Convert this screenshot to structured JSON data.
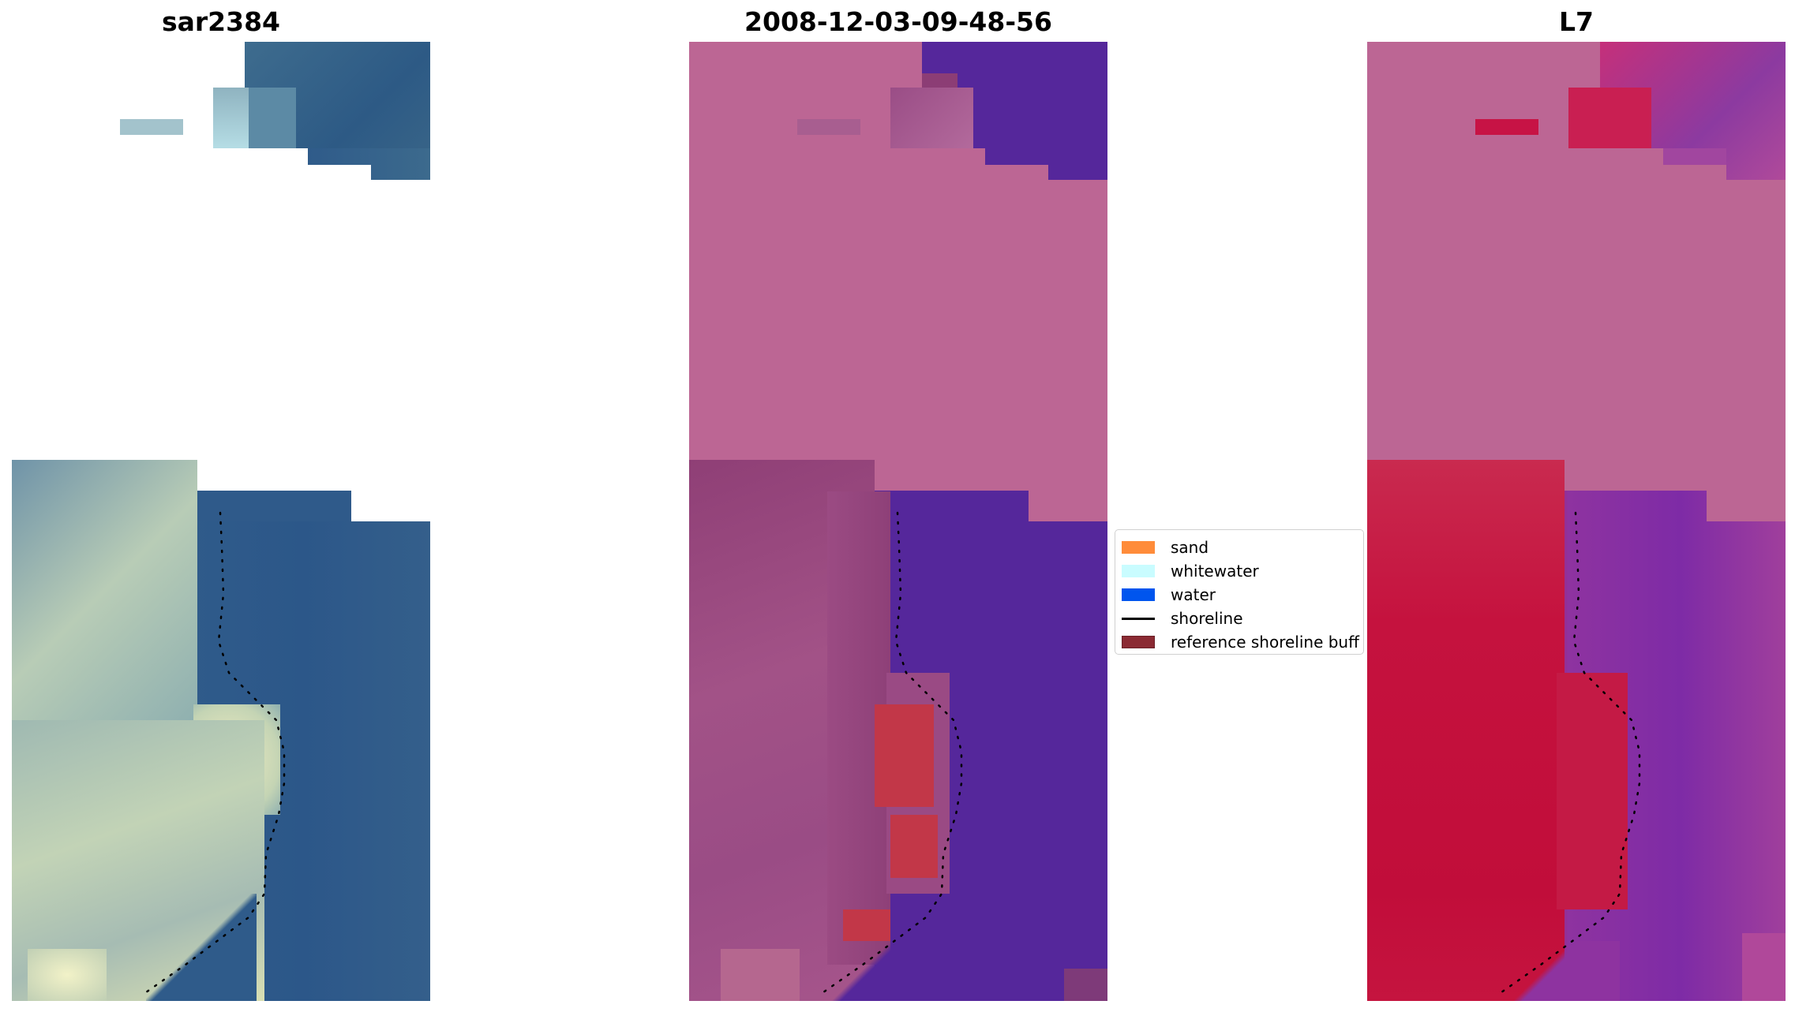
{
  "panels": [
    {
      "id": "sar",
      "title": "sar2384"
    },
    {
      "id": "class",
      "title": "2008-12-03-09-48-56"
    },
    {
      "id": "mndwi",
      "title": "L7"
    }
  ],
  "legend": {
    "items": [
      {
        "label": "sand",
        "color": "#ff8c3a",
        "kind": "patch"
      },
      {
        "label": "whitewater",
        "color": "#c9fcff",
        "kind": "patch"
      },
      {
        "label": "water",
        "color": "#0055ee",
        "kind": "patch"
      },
      {
        "label": "shoreline",
        "color": "#000000",
        "kind": "line"
      },
      {
        "label": "reference shoreline buff",
        "color": "#8b2a33",
        "kind": "patch"
      }
    ]
  },
  "colors": {
    "nodata_pink": "#bc6694",
    "water_purple": "#55279b",
    "land_crimson": "#c5123e",
    "sar_water_blue": "#2f5b8a",
    "sar_land_pale": "#b3c9b4",
    "buffer_red": "#c23748"
  }
}
